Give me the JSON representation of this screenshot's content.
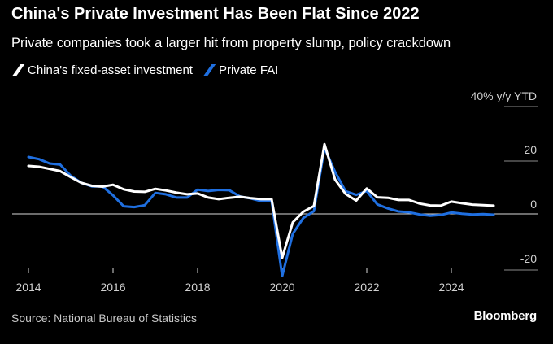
{
  "header": {
    "title": "China's Private Investment Has Been Flat Since 2022",
    "subtitle": "Private companies took a larger hit from property slump, policy crackdown"
  },
  "footer": {
    "source": "Source: National Bureau of Statistics",
    "brand": "Bloomberg"
  },
  "colors": {
    "background": "#000000",
    "total": "#ffffff",
    "private": "#1f6fe0"
  },
  "chart_data": {
    "type": "line",
    "title": "China's Private Investment Has Been Flat Since 2022",
    "ylabel": "40% y/y YTD",
    "ylim": [
      -25,
      40
    ],
    "xlim": [
      2014,
      2025.5
    ],
    "xticks": [
      "2014",
      "2016",
      "2018",
      "2020",
      "2022",
      "2024"
    ],
    "yticks": [
      "20",
      "0",
      "-20"
    ],
    "series": [
      {
        "name": "China's fixed-asset investment",
        "color": "#ffffff",
        "x": [
          2014.0,
          2014.25,
          2014.5,
          2014.75,
          2015.0,
          2015.25,
          2015.5,
          2015.75,
          2016.0,
          2016.25,
          2016.5,
          2016.75,
          2017.0,
          2017.25,
          2017.5,
          2017.75,
          2018.0,
          2018.25,
          2018.5,
          2018.75,
          2019.0,
          2019.25,
          2019.5,
          2019.75,
          2020.0,
          2020.25,
          2020.5,
          2020.75,
          2021.0,
          2021.25,
          2021.5,
          2021.75,
          2022.0,
          2022.25,
          2022.5,
          2022.75,
          2023.0,
          2023.25,
          2023.5,
          2023.75,
          2024.0,
          2024.25,
          2024.5,
          2024.75,
          2025.0
        ],
        "values": [
          17.6,
          17.3,
          16.5,
          15.7,
          13.5,
          11.4,
          10.3,
          10.0,
          10.7,
          9.0,
          8.2,
          8.1,
          9.2,
          8.6,
          7.8,
          7.2,
          7.5,
          6.0,
          5.4,
          5.9,
          6.3,
          5.8,
          5.4,
          5.4,
          -16.1,
          -3.1,
          0.8,
          2.9,
          25.6,
          12.6,
          7.3,
          4.9,
          9.3,
          6.1,
          5.9,
          5.1,
          5.1,
          3.8,
          3.1,
          3.0,
          4.5,
          3.9,
          3.4,
          3.2,
          3.0
        ]
      },
      {
        "name": "Private FAI",
        "color": "#1f6fe0",
        "x": [
          2014.0,
          2014.25,
          2014.5,
          2014.75,
          2015.0,
          2015.25,
          2015.5,
          2015.75,
          2016.0,
          2016.25,
          2016.5,
          2016.75,
          2017.0,
          2017.25,
          2017.5,
          2017.75,
          2018.0,
          2018.25,
          2018.5,
          2018.75,
          2019.0,
          2019.25,
          2019.5,
          2019.75,
          2020.0,
          2020.25,
          2020.5,
          2020.75,
          2021.0,
          2021.25,
          2021.5,
          2021.75,
          2022.0,
          2022.25,
          2022.5,
          2022.75,
          2023.0,
          2023.25,
          2023.5,
          2023.75,
          2024.0,
          2024.25,
          2024.5,
          2024.75,
          2025.0
        ],
        "values": [
          20.9,
          20.1,
          18.5,
          18.1,
          14.0,
          11.4,
          10.1,
          10.1,
          6.8,
          2.8,
          2.5,
          3.2,
          7.7,
          7.2,
          6.0,
          6.0,
          8.9,
          8.4,
          8.8,
          8.7,
          6.4,
          5.7,
          4.7,
          4.7,
          -22.8,
          -7.3,
          -1.5,
          1.0,
          24.2,
          15.4,
          8.3,
          7.0,
          8.4,
          3.5,
          2.0,
          0.9,
          0.6,
          -0.2,
          -0.7,
          -0.4,
          0.5,
          0.1,
          -0.2,
          -0.1,
          -0.3
        ]
      }
    ]
  }
}
